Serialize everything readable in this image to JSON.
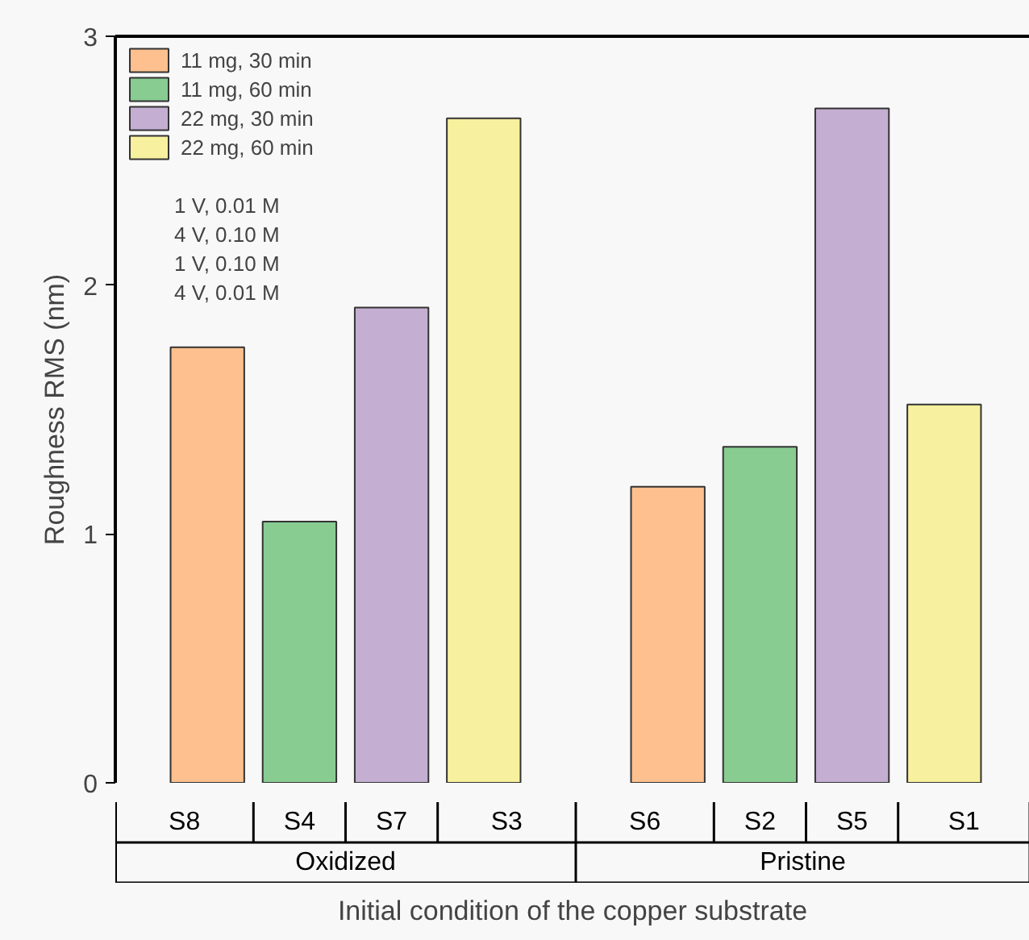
{
  "chart_data": {
    "type": "bar",
    "xlabel": "Initial condition of the copper substrate",
    "ylabel": "Roughness RMS (nm)",
    "categories": [
      "S8",
      "S4",
      "S7",
      "S3",
      null,
      "S6",
      "S2",
      "S5",
      "S1"
    ],
    "series": [
      {
        "name": "11 mg, 30 min",
        "color": "#fdc08e",
        "values": [
          1.75,
          null,
          null,
          null,
          null,
          1.19,
          null,
          null,
          null
        ]
      },
      {
        "name": "11 mg, 60 min",
        "color": "#88cc92",
        "values": [
          null,
          1.05,
          null,
          null,
          null,
          null,
          1.35,
          null,
          null
        ]
      },
      {
        "name": "22 mg, 30 min",
        "color": "#c4aed2",
        "values": [
          null,
          null,
          1.91,
          null,
          null,
          null,
          null,
          2.71,
          null
        ]
      },
      {
        "name": "22 mg, 60 min",
        "color": "#f7f09e",
        "values": [
          null,
          null,
          null,
          2.67,
          null,
          null,
          null,
          null,
          1.52
        ]
      }
    ],
    "annotations": [
      "Oxidized",
      "Pristine",
      "1 V, 0.01 M",
      "4 V, 0.10 M",
      "1 V, 0.10 M",
      "4 V, 0.01 M"
    ],
    "ylim": [
      0,
      3
    ],
    "yticks": [
      0,
      1,
      2,
      3
    ],
    "grid": false,
    "legend": "top left"
  }
}
